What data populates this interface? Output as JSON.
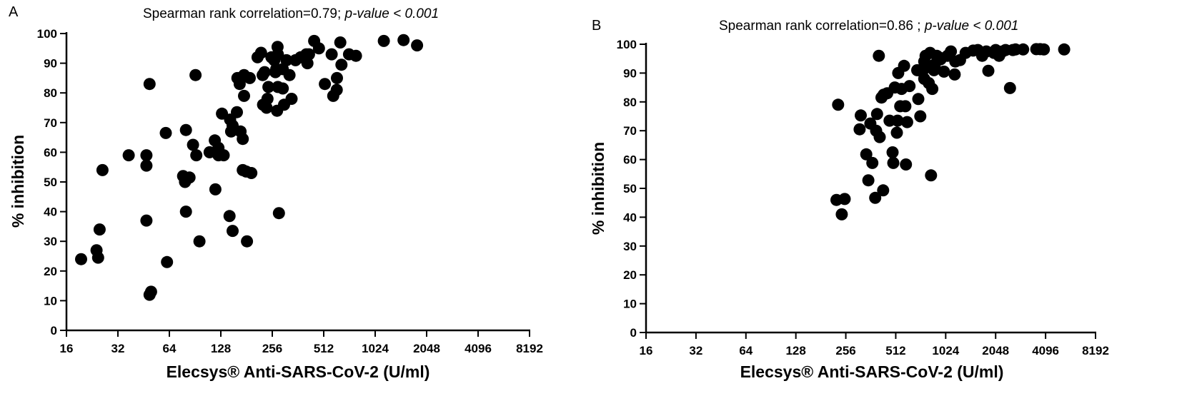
{
  "chart_data": [
    {
      "type": "scatter",
      "panel_label": "A",
      "title_prefix": "Spearman rank correlation=0.79; ",
      "title_italic": "p-value < 0.001",
      "xlabel": "Elecsys® Anti-SARS-CoV-2 (U/ml)",
      "ylabel": "% inhibition",
      "x_scale": "log2",
      "xlim": [
        16,
        8192
      ],
      "ylim": [
        0,
        100
      ],
      "x_ticks": [
        "16",
        "32",
        "64",
        "128",
        "256",
        "512",
        "1024",
        "2048",
        "4096",
        "8192"
      ],
      "y_ticks": [
        "0",
        "10",
        "20",
        "30",
        "40",
        "50",
        "60",
        "70",
        "80",
        "90",
        "100"
      ],
      "marker_color": "#000000",
      "points": [
        [
          19.5,
          24
        ],
        [
          24,
          27
        ],
        [
          24.5,
          24.5
        ],
        [
          25,
          34
        ],
        [
          26,
          54
        ],
        [
          37,
          59
        ],
        [
          47,
          59
        ],
        [
          47,
          55.5
        ],
        [
          47,
          37
        ],
        [
          49,
          83
        ],
        [
          49,
          12
        ],
        [
          50,
          13
        ],
        [
          61,
          66.5
        ],
        [
          62,
          23
        ],
        [
          77,
          52
        ],
        [
          79,
          50
        ],
        [
          80,
          67.5
        ],
        [
          80,
          40
        ],
        [
          84,
          51.5
        ],
        [
          88,
          62.5
        ],
        [
          91,
          86
        ],
        [
          92,
          59
        ],
        [
          96,
          30
        ],
        [
          110,
          60
        ],
        [
          118,
          64
        ],
        [
          119,
          47.5
        ],
        [
          124,
          59
        ],
        [
          124,
          61.5
        ],
        [
          130,
          73
        ],
        [
          133,
          59
        ],
        [
          144,
          38.5
        ],
        [
          145,
          71
        ],
        [
          147,
          67
        ],
        [
          150,
          33.5
        ],
        [
          150,
          69
        ],
        [
          159,
          73.5
        ],
        [
          160,
          85
        ],
        [
          165,
          83
        ],
        [
          167,
          67
        ],
        [
          172,
          54
        ],
        [
          172,
          64.5
        ],
        [
          175,
          79
        ],
        [
          175,
          86
        ],
        [
          180,
          53.5
        ],
        [
          182,
          30
        ],
        [
          189,
          85
        ],
        [
          193,
          53
        ],
        [
          210,
          92
        ],
        [
          220,
          93.5
        ],
        [
          225,
          86
        ],
        [
          226,
          76
        ],
        [
          231,
          87
        ],
        [
          237,
          75
        ],
        [
          240,
          78
        ],
        [
          243,
          82
        ],
        [
          253,
          92
        ],
        [
          263,
          91
        ],
        [
          267,
          87
        ],
        [
          270,
          88
        ],
        [
          273,
          74
        ],
        [
          275,
          95.5
        ],
        [
          276,
          93
        ],
        [
          276,
          82
        ],
        [
          280,
          39.5
        ],
        [
          295,
          81.5
        ],
        [
          295,
          88
        ],
        [
          300,
          76
        ],
        [
          310,
          91
        ],
        [
          323,
          86
        ],
        [
          332,
          78
        ],
        [
          350,
          91
        ],
        [
          375,
          92
        ],
        [
          405,
          93
        ],
        [
          411,
          90
        ],
        [
          420,
          93
        ],
        [
          450,
          97.5
        ],
        [
          480,
          95
        ],
        [
          520,
          83
        ],
        [
          570,
          93
        ],
        [
          582,
          79
        ],
        [
          610,
          81
        ],
        [
          612,
          85
        ],
        [
          640,
          97
        ],
        [
          650,
          89.5
        ],
        [
          720,
          93
        ],
        [
          790,
          92.5
        ],
        [
          1150,
          97.5
        ],
        [
          1500,
          97.8
        ],
        [
          1800,
          96
        ]
      ]
    },
    {
      "type": "scatter",
      "panel_label": "B",
      "title_prefix": "Spearman rank correlation=0.86 ; ",
      "title_italic": "p-value < 0.001",
      "xlabel": "Elecsys® Anti-SARS-CoV-2 (U/ml)",
      "ylabel": "% inhibition",
      "x_scale": "log2",
      "xlim": [
        16,
        8192
      ],
      "ylim": [
        0,
        100
      ],
      "x_ticks": [
        "16",
        "32",
        "64",
        "128",
        "256",
        "512",
        "1024",
        "2048",
        "4096",
        "8192"
      ],
      "y_ticks": [
        "0",
        "10",
        "20",
        "30",
        "40",
        "50",
        "60",
        "70",
        "80",
        "90",
        "100"
      ],
      "marker_color": "#000000",
      "points": [
        [
          225,
          46
        ],
        [
          230,
          79
        ],
        [
          242,
          41
        ],
        [
          252,
          46.3
        ],
        [
          310,
          70.5
        ],
        [
          315,
          75.3
        ],
        [
          340,
          61.8
        ],
        [
          350,
          52.8
        ],
        [
          360,
          72.5
        ],
        [
          370,
          58.8
        ],
        [
          385,
          46.7
        ],
        [
          390,
          70
        ],
        [
          395,
          75.8
        ],
        [
          405,
          96
        ],
        [
          410,
          67.8
        ],
        [
          420,
          81.5
        ],
        [
          430,
          49.3
        ],
        [
          433,
          82.5
        ],
        [
          455,
          83
        ],
        [
          470,
          73.5
        ],
        [
          490,
          62.5
        ],
        [
          495,
          58.8
        ],
        [
          505,
          85
        ],
        [
          520,
          69.3
        ],
        [
          525,
          73.5
        ],
        [
          530,
          90
        ],
        [
          545,
          78.5
        ],
        [
          555,
          84.5
        ],
        [
          575,
          92.5
        ],
        [
          585,
          78.5
        ],
        [
          590,
          58.3
        ],
        [
          600,
          73
        ],
        [
          620,
          85.5
        ],
        [
          690,
          91
        ],
        [
          700,
          81
        ],
        [
          720,
          75
        ],
        [
          740,
          90.5
        ],
        [
          760,
          94
        ],
        [
          760,
          88
        ],
        [
          775,
          96
        ],
        [
          785,
          92
        ],
        [
          810,
          86.5
        ],
        [
          825,
          97
        ],
        [
          835,
          54.5
        ],
        [
          845,
          92.5
        ],
        [
          850,
          84.5
        ],
        [
          870,
          91
        ],
        [
          880,
          93
        ],
        [
          905,
          96
        ],
        [
          930,
          95.5
        ],
        [
          955,
          94.8
        ],
        [
          1000,
          90.5
        ],
        [
          1050,
          96
        ],
        [
          1100,
          97.5
        ],
        [
          1160,
          89.5
        ],
        [
          1170,
          94
        ],
        [
          1250,
          94.5
        ],
        [
          1350,
          97
        ],
        [
          1500,
          97.8
        ],
        [
          1600,
          98
        ],
        [
          1700,
          96
        ],
        [
          1800,
          97.5
        ],
        [
          1850,
          90.8
        ],
        [
          2000,
          97
        ],
        [
          2050,
          98
        ],
        [
          2150,
          96
        ],
        [
          2250,
          97.5
        ],
        [
          2350,
          98
        ],
        [
          2500,
          84.8
        ],
        [
          2600,
          98
        ],
        [
          2700,
          98.2
        ],
        [
          3000,
          98.2
        ],
        [
          3600,
          98.3
        ],
        [
          3800,
          98.3
        ],
        [
          4000,
          98.2
        ],
        [
          5300,
          98.2
        ]
      ]
    }
  ]
}
